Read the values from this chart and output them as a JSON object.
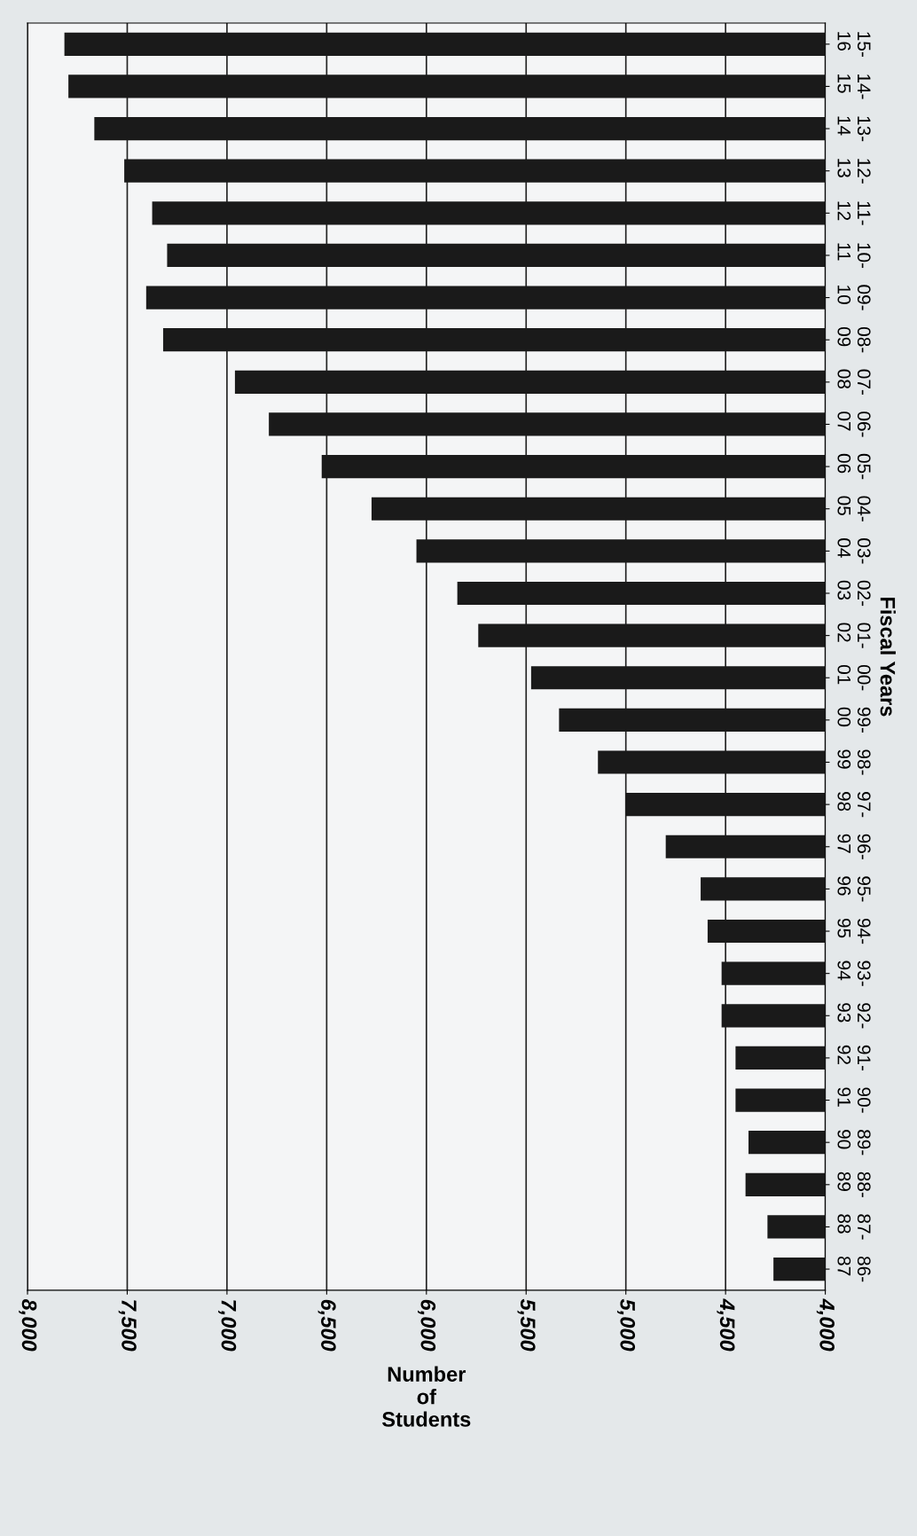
{
  "chart_data": {
    "type": "bar",
    "orientation": "horizontal",
    "xlabel": "Number\nof\nStudents",
    "ylabel": "Fiscal Years",
    "categories": [
      "15-\n16",
      "14-\n15",
      "13-\n14",
      "12-\n13",
      "11-\n12",
      "10-\n11",
      "09-\n10",
      "08-\n09",
      "07-\n08",
      "06-\n07",
      "05-\n06",
      "04-\n05",
      "03-\n04",
      "02-\n03",
      "01-\n02",
      "00-\n01",
      "99-\n00",
      "98-\n99",
      "97-\n98",
      "96-\n97",
      "95-\n96",
      "94-\n95",
      "93-\n94",
      "92-\n93",
      "91-\n92",
      "90-\n91",
      "89-\n90",
      "88-\n89",
      "87-\n88",
      "86-\n87"
    ],
    "values": [
      7815,
      7795,
      7665,
      7515,
      7375,
      7300,
      7405,
      7320,
      6960,
      6790,
      6525,
      6275,
      6050,
      5845,
      5740,
      5475,
      5335,
      5140,
      5000,
      4800,
      4625,
      4590,
      4520,
      4520,
      4450,
      4450,
      4385,
      4400,
      4290,
      4260
    ],
    "color": "#1a1a1a",
    "xlim": [
      8000,
      4000
    ],
    "xticks": [
      {
        "value": 8000,
        "label": "8,000"
      },
      {
        "value": 7500,
        "label": "7,500"
      },
      {
        "value": 7000,
        "label": "7,000"
      },
      {
        "value": 6500,
        "label": "6,500"
      },
      {
        "value": 6000,
        "label": "6,000"
      },
      {
        "value": 5500,
        "label": "5,500"
      },
      {
        "value": 5000,
        "label": "5,000"
      },
      {
        "value": 4500,
        "label": "4,500"
      },
      {
        "value": 4000,
        "label": "4,000"
      }
    ],
    "grid": "x"
  }
}
